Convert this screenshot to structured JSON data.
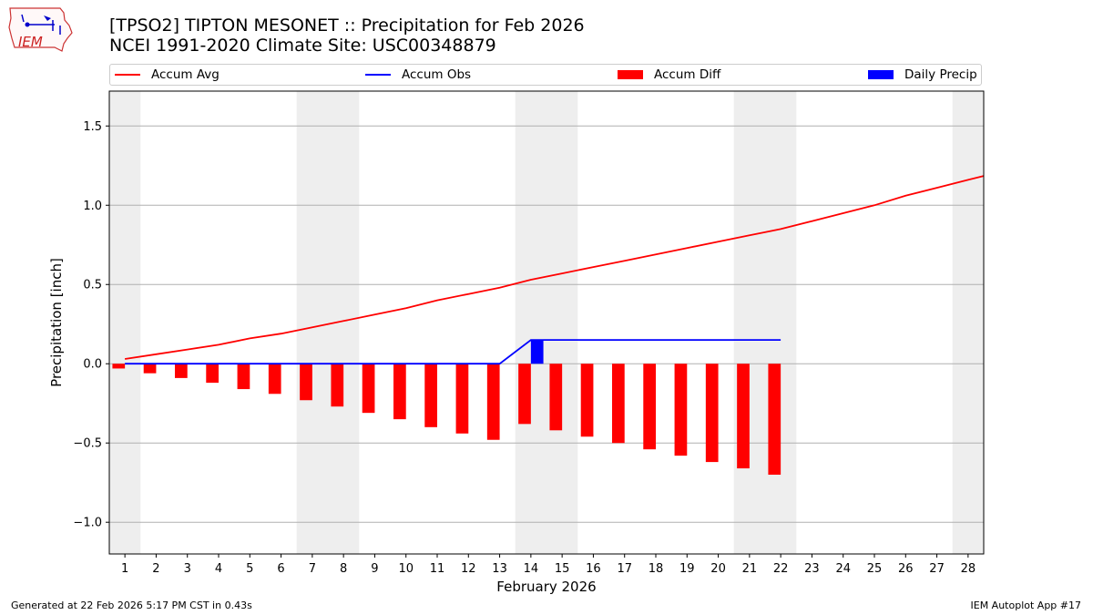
{
  "header": {
    "title_line1": "[TPSO2] TIPTON MESONET :: Precipitation for Feb 2026",
    "title_line2": "NCEI 1991-2020 Climate Site: USC00348879",
    "logo_text": "IEM"
  },
  "footer": {
    "generated": "Generated at 22 Feb 2026 5:17 PM CST in 0.43s",
    "app": "IEM Autoplot App #17"
  },
  "colors": {
    "avg": "#ff0000",
    "obs": "#0000ff",
    "diff": "#ff0000",
    "daily": "#0000ff",
    "weekend_shade": "#eeeeee",
    "grid": "#b0b0b0"
  },
  "chart_data": {
    "type": "bar",
    "title": "[TPSO2] TIPTON MESONET :: Precipitation for Feb 2026",
    "subtitle": "NCEI 1991-2020 Climate Site: USC00348879",
    "xlabel": "February 2026",
    "ylabel": "Precipitation [inch]",
    "xlim": [
      0.5,
      28.5
    ],
    "ylim": [
      -1.2,
      1.72
    ],
    "yticks": [
      -1.0,
      -0.5,
      0.0,
      0.5,
      1.0,
      1.5
    ],
    "ytick_labels": [
      "−1.0",
      "−0.5",
      "0.0",
      "0.5",
      "1.0",
      "1.5"
    ],
    "days": [
      1,
      2,
      3,
      4,
      5,
      6,
      7,
      8,
      9,
      10,
      11,
      12,
      13,
      14,
      15,
      16,
      17,
      18,
      19,
      20,
      21,
      22,
      23,
      24,
      25,
      26,
      27,
      28
    ],
    "shaded_day_ranges": [
      [
        0.5,
        1.5
      ],
      [
        6.5,
        8.5
      ],
      [
        13.5,
        15.5
      ],
      [
        20.5,
        22.5
      ],
      [
        27.5,
        28.5
      ]
    ],
    "grid": true,
    "legend_position": "top",
    "series": [
      {
        "name": "Accum Avg",
        "kind": "line",
        "x": [
          1,
          2,
          3,
          4,
          5,
          6,
          7,
          8,
          9,
          10,
          11,
          12,
          13,
          14,
          15,
          16,
          17,
          18,
          19,
          20,
          21,
          22,
          23,
          24,
          25,
          26,
          27,
          28,
          28.5
        ],
        "values": [
          0.03,
          0.06,
          0.09,
          0.12,
          0.16,
          0.19,
          0.23,
          0.27,
          0.31,
          0.35,
          0.4,
          0.44,
          0.48,
          0.53,
          0.57,
          0.61,
          0.65,
          0.69,
          0.73,
          0.77,
          0.81,
          0.85,
          0.9,
          0.95,
          1.0,
          1.06,
          1.11,
          1.16,
          1.185
        ]
      },
      {
        "name": "Accum Obs",
        "kind": "line",
        "x": [
          1,
          2,
          3,
          4,
          5,
          6,
          7,
          8,
          9,
          10,
          11,
          12,
          13,
          14,
          15,
          16,
          17,
          18,
          19,
          20,
          21,
          22
        ],
        "values": [
          0,
          0,
          0,
          0,
          0,
          0,
          0,
          0,
          0,
          0,
          0,
          0,
          0,
          0.15,
          0.15,
          0.15,
          0.15,
          0.15,
          0.15,
          0.15,
          0.15,
          0.15
        ]
      },
      {
        "name": "Accum Diff",
        "kind": "bar",
        "x": [
          1,
          2,
          3,
          4,
          5,
          6,
          7,
          8,
          9,
          10,
          11,
          12,
          13,
          14,
          15,
          16,
          17,
          18,
          19,
          20,
          21,
          22
        ],
        "values": [
          -0.03,
          -0.06,
          -0.09,
          -0.12,
          -0.16,
          -0.19,
          -0.23,
          -0.27,
          -0.31,
          -0.35,
          -0.4,
          -0.44,
          -0.48,
          -0.38,
          -0.42,
          -0.46,
          -0.5,
          -0.54,
          -0.58,
          -0.62,
          -0.66,
          -0.7
        ]
      },
      {
        "name": "Daily Precip",
        "kind": "bar",
        "x": [
          1,
          2,
          3,
          4,
          5,
          6,
          7,
          8,
          9,
          10,
          11,
          12,
          13,
          14,
          15,
          16,
          17,
          18,
          19,
          20,
          21,
          22
        ],
        "values": [
          0,
          0,
          0,
          0,
          0,
          0,
          0,
          0,
          0,
          0,
          0,
          0,
          0,
          0.15,
          0,
          0,
          0,
          0,
          0,
          0,
          0,
          0
        ]
      }
    ]
  }
}
